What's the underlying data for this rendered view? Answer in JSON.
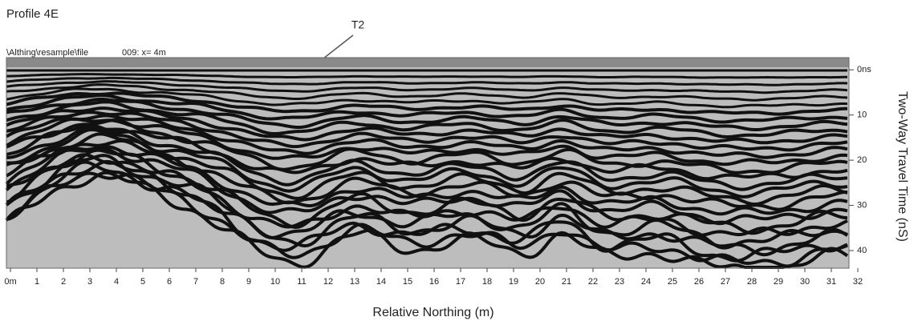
{
  "chart_data": {
    "type": "radargram",
    "title": "Profile 4E",
    "file_label": "\\Althing\\resample\\file",
    "trace_label": "009:  x= 4m",
    "annotation": "T2",
    "xlabel": "Relative Northing (m)",
    "ylabel": "Two-Way Travel Time (nS)",
    "xlim": [
      0,
      32
    ],
    "xticks": [
      {
        "value": 0,
        "label": "0m"
      },
      1,
      2,
      3,
      4,
      5,
      6,
      7,
      8,
      9,
      10,
      11,
      12,
      13,
      14,
      15,
      16,
      17,
      18,
      19,
      20,
      21,
      22,
      23,
      24,
      25,
      26,
      27,
      28,
      29,
      30,
      31,
      32
    ],
    "ylim": [
      -2.7,
      43.9
    ],
    "yticks": [
      {
        "value": 0,
        "label": "0ns"
      },
      10,
      20,
      30,
      40
    ]
  }
}
